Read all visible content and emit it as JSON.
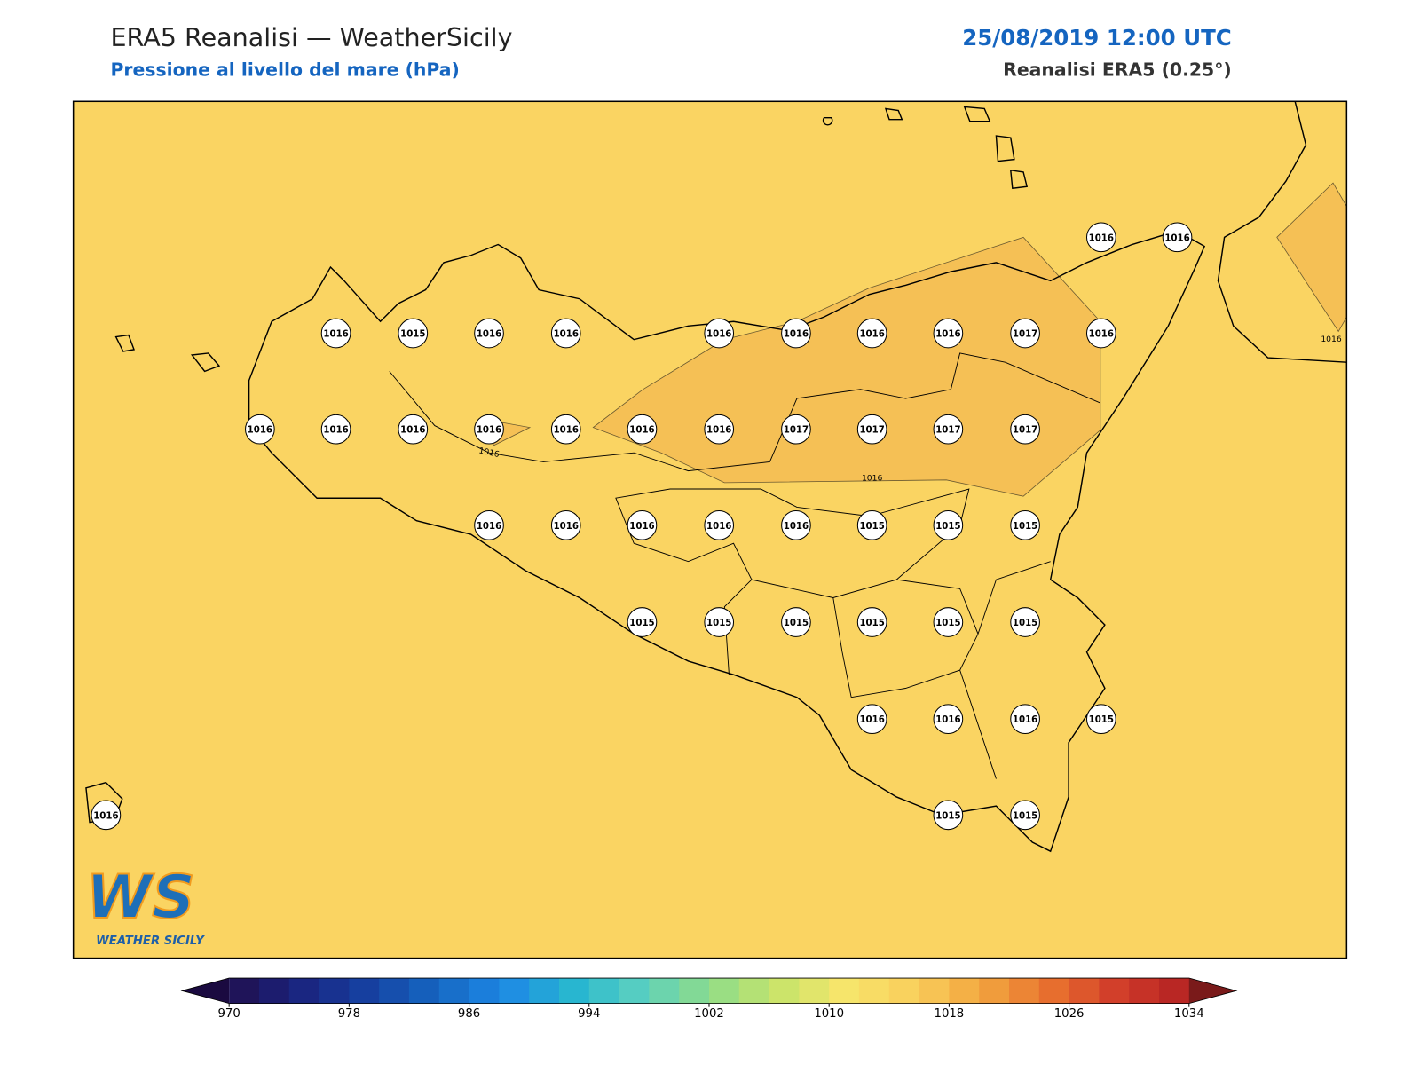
{
  "header": {
    "title": "ERA5 Reanalisi — WeatherSicily",
    "subtitle": "Pressione al livello del mare (hPa)",
    "datetime": "25/08/2019 12:00 UTC",
    "source": "Reanalisi ERA5 (0.25°)"
  },
  "stations": [
    1016,
    1016,
    1016,
    1015,
    1016,
    1016,
    1016,
    1016,
    1016,
    1016,
    1017,
    1016,
    1016,
    1016,
    1016,
    1016,
    1016,
    1016,
    1016,
    1017,
    1017,
    1017,
    1017,
    1016,
    1016,
    1016,
    1016,
    1016,
    1015,
    1015,
    1015,
    1015,
    1015,
    1015,
    1015,
    1015,
    1015,
    1016,
    1016,
    1016,
    1015,
    1016,
    1015,
    1015
  ],
  "contour_labels": [
    1016,
    1016,
    1016
  ],
  "colorbar": {
    "range": [
      970,
      1034
    ],
    "ticks": [
      970,
      978,
      986,
      994,
      1002,
      1010,
      1018,
      1026,
      1034
    ]
  },
  "logo": {
    "mark": "WS",
    "name": "WEATHER SICILY"
  }
}
